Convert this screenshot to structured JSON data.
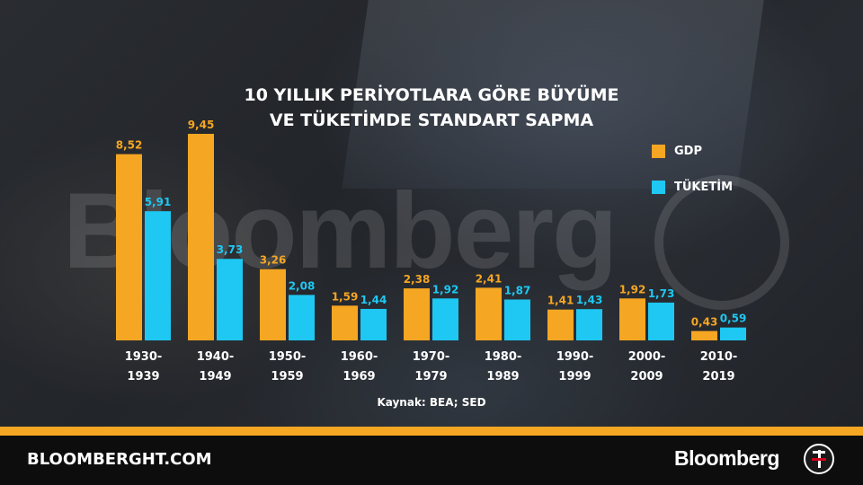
{
  "title_lines": [
    "10 YILLIK PERİYOTLARA GÖRE BÜYÜME",
    "VE TÜKETİMDE STANDART SAPMA"
  ],
  "watermark": "Bloomberg",
  "source": "Kaynak: BEA; SED",
  "footer": {
    "site": "BLOOMBERGHT.COM",
    "brand": "Bloomberg"
  },
  "colors": {
    "gdp": "#f5a623",
    "consumption": "#1ec8f2",
    "accent_stripe": "#f5a623",
    "footer_bg": "#0d0d0d"
  },
  "chart_data": {
    "type": "bar",
    "categories": [
      [
        "1930-",
        "1939"
      ],
      [
        "1940-",
        "1949"
      ],
      [
        "1950-",
        "1959"
      ],
      [
        "1960-",
        "1969"
      ],
      [
        "1970-",
        "1979"
      ],
      [
        "1980-",
        "1989"
      ],
      [
        "1990-",
        "1999"
      ],
      [
        "2000-",
        "2009"
      ],
      [
        "2010-",
        "2019"
      ]
    ],
    "series": [
      {
        "name": "GDP",
        "values": [
          8.52,
          9.45,
          3.26,
          1.59,
          2.38,
          2.41,
          1.41,
          1.92,
          0.43
        ],
        "labels": [
          "8,52",
          "9,45",
          "3,26",
          "1,59",
          "2,38",
          "2,41",
          "1,41",
          "1,92",
          "0,43"
        ]
      },
      {
        "name": "TÜKETİM",
        "values": [
          5.91,
          3.73,
          2.08,
          1.44,
          1.92,
          1.87,
          1.43,
          1.73,
          0.59
        ],
        "labels": [
          "5,91",
          "3,73",
          "2,08",
          "1,44",
          "1,92",
          "1,87",
          "1,43",
          "1,73",
          "0,59"
        ]
      }
    ],
    "ylim": [
      0,
      10
    ],
    "legend_position": "right"
  }
}
